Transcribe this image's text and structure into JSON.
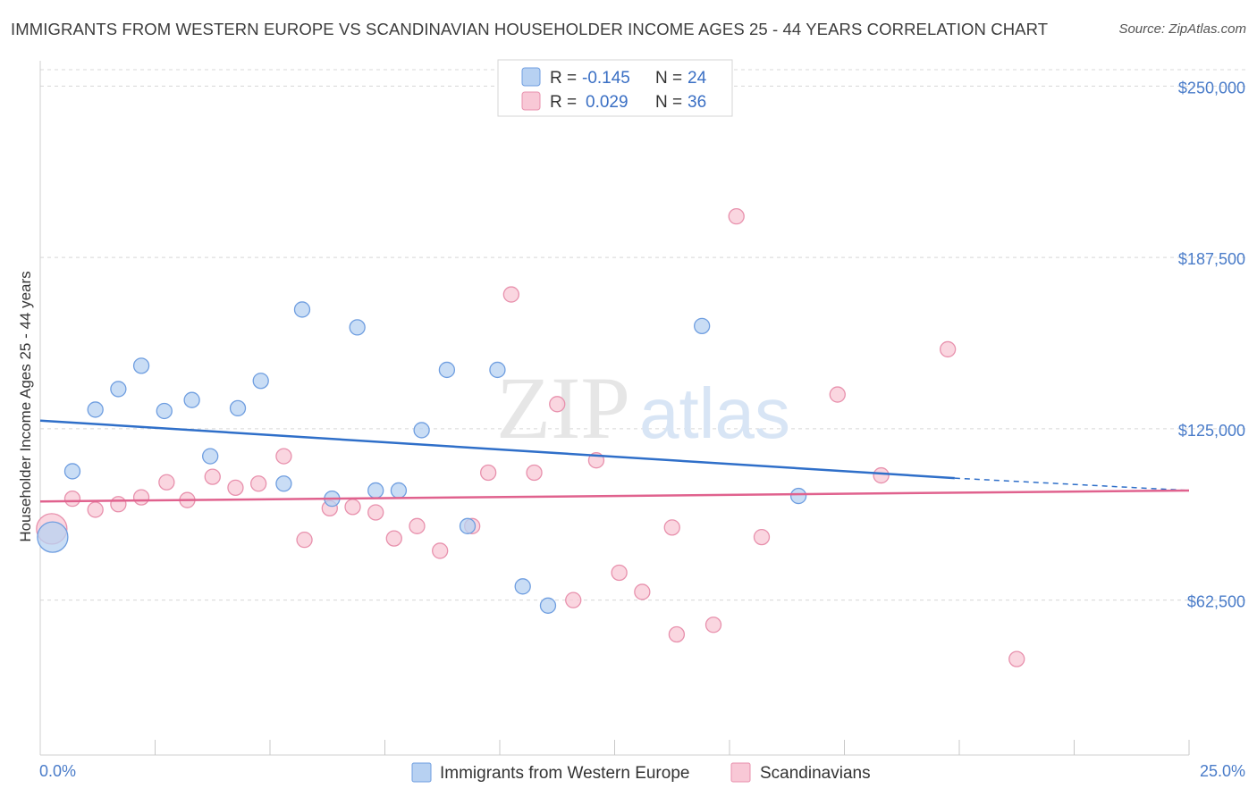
{
  "header": {
    "title": "IMMIGRANTS FROM WESTERN EUROPE VS SCANDINAVIAN HOUSEHOLDER INCOME AGES 25 - 44 YEARS CORRELATION CHART",
    "source": "Source: ZipAtlas.com"
  },
  "watermark": {
    "zip": "ZIP",
    "atlas": "atlas"
  },
  "legend": {
    "rows": [
      {
        "r_label": "R =",
        "r_value": "-0.145",
        "n_label": "N =",
        "n_value": "24"
      },
      {
        "r_label": "R =",
        "r_value": "0.029",
        "n_label": "N =",
        "n_value": "36"
      }
    ]
  },
  "colors": {
    "blue_fill": "#b7d1f2",
    "blue_stroke": "#6f9ee0",
    "blue_line": "#2f6fc9",
    "pink_fill": "#f8c8d6",
    "pink_stroke": "#e891ad",
    "pink_line": "#e0628e",
    "grid": "#d8d8d8",
    "tick_label": "#4a7cc9"
  },
  "chart_data": {
    "type": "scatter",
    "title": "IMMIGRANTS FROM WESTERN EUROPE VS SCANDINAVIAN HOUSEHOLDER INCOME AGES 25 - 44 YEARS CORRELATION CHART",
    "ylabel": "Householder Income Ages 25 - 44 years",
    "xlabel": "",
    "xlim": [
      0,
      25
    ],
    "ylim": [
      6000,
      256000
    ],
    "y_ticks": [
      62500,
      125000,
      187500,
      250000
    ],
    "y_tick_labels": [
      "$62,500",
      "$125,000",
      "$187,500",
      "$250,000"
    ],
    "x_tick_labels": [
      "0.0%",
      "25.0%"
    ],
    "grid": "horizontal dashed",
    "legend_position": "top-center",
    "series": [
      {
        "name": "Immigrants from Western Europe",
        "color": "#b7d1f2",
        "trend": {
          "x": [
            0,
            19.9
          ],
          "y": [
            128000,
            107000
          ],
          "dashed_to": [
            25,
            102500
          ]
        },
        "points": [
          {
            "x": 0.27,
            "y": 85500,
            "big": true
          },
          {
            "x": 0.7,
            "y": 109500
          },
          {
            "x": 1.2,
            "y": 132000
          },
          {
            "x": 1.7,
            "y": 139500
          },
          {
            "x": 2.2,
            "y": 148000
          },
          {
            "x": 2.7,
            "y": 131500
          },
          {
            "x": 3.3,
            "y": 135500
          },
          {
            "x": 3.7,
            "y": 115000
          },
          {
            "x": 4.3,
            "y": 132500
          },
          {
            "x": 4.8,
            "y": 142500
          },
          {
            "x": 5.3,
            "y": 105000
          },
          {
            "x": 5.7,
            "y": 168500
          },
          {
            "x": 6.35,
            "y": 99500
          },
          {
            "x": 6.9,
            "y": 162000
          },
          {
            "x": 7.3,
            "y": 102500
          },
          {
            "x": 7.8,
            "y": 102500
          },
          {
            "x": 8.3,
            "y": 124500
          },
          {
            "x": 8.85,
            "y": 146500
          },
          {
            "x": 9.3,
            "y": 89500
          },
          {
            "x": 9.95,
            "y": 146500
          },
          {
            "x": 10.5,
            "y": 67500
          },
          {
            "x": 11.05,
            "y": 60500
          },
          {
            "x": 14.4,
            "y": 162500
          },
          {
            "x": 16.5,
            "y": 100500
          }
        ]
      },
      {
        "name": "Scandinavians",
        "color": "#f8c8d6",
        "trend": {
          "x": [
            0,
            25
          ],
          "y": [
            98500,
            102500
          ]
        },
        "points": [
          {
            "x": 0.25,
            "y": 88500,
            "big": true
          },
          {
            "x": 0.7,
            "y": 99500
          },
          {
            "x": 1.2,
            "y": 95500
          },
          {
            "x": 1.7,
            "y": 97500
          },
          {
            "x": 2.2,
            "y": 100000
          },
          {
            "x": 2.75,
            "y": 105500
          },
          {
            "x": 3.2,
            "y": 99000
          },
          {
            "x": 3.75,
            "y": 107500
          },
          {
            "x": 4.25,
            "y": 103500
          },
          {
            "x": 4.75,
            "y": 105000
          },
          {
            "x": 5.3,
            "y": 115000
          },
          {
            "x": 5.75,
            "y": 84500
          },
          {
            "x": 6.3,
            "y": 96000
          },
          {
            "x": 6.8,
            "y": 96500
          },
          {
            "x": 7.3,
            "y": 94500
          },
          {
            "x": 7.7,
            "y": 85000
          },
          {
            "x": 8.2,
            "y": 89500
          },
          {
            "x": 8.7,
            "y": 80500
          },
          {
            "x": 9.4,
            "y": 89500
          },
          {
            "x": 9.75,
            "y": 109000
          },
          {
            "x": 10.25,
            "y": 174000
          },
          {
            "x": 10.75,
            "y": 109000
          },
          {
            "x": 11.25,
            "y": 134000
          },
          {
            "x": 11.6,
            "y": 62500
          },
          {
            "x": 12.1,
            "y": 113500
          },
          {
            "x": 12.6,
            "y": 72500
          },
          {
            "x": 13.1,
            "y": 65500
          },
          {
            "x": 13.75,
            "y": 89000
          },
          {
            "x": 13.85,
            "y": 50000
          },
          {
            "x": 14.65,
            "y": 53500
          },
          {
            "x": 15.15,
            "y": 202500
          },
          {
            "x": 15.7,
            "y": 85500
          },
          {
            "x": 17.35,
            "y": 137500
          },
          {
            "x": 18.3,
            "y": 108000
          },
          {
            "x": 19.75,
            "y": 154000
          },
          {
            "x": 21.25,
            "y": 41000
          }
        ]
      }
    ]
  }
}
